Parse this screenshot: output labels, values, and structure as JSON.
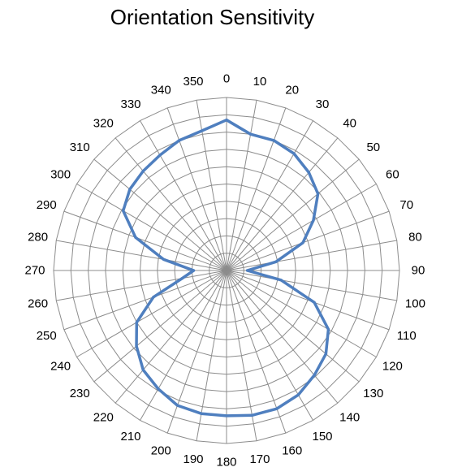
{
  "chart_data": {
    "type": "radar",
    "title": "Orientation Sensitivity",
    "angle_labels": [
      "0",
      "10",
      "20",
      "30",
      "40",
      "50",
      "60",
      "70",
      "80",
      "90",
      "100",
      "110",
      "120",
      "130",
      "140",
      "150",
      "160",
      "170",
      "180",
      "190",
      "200",
      "210",
      "220",
      "230",
      "240",
      "250",
      "260",
      "270",
      "280",
      "290",
      "300",
      "310",
      "320",
      "330",
      "340",
      "350"
    ],
    "radial_range": [
      0,
      10
    ],
    "grid_rings": 10,
    "grid": true,
    "series": [
      {
        "color": "#4f7fbf",
        "values": [
          8.7,
          8.0,
          8.0,
          7.8,
          7.4,
          6.9,
          5.8,
          4.7,
          2.9,
          1.2,
          3.2,
          5.4,
          6.8,
          7.5,
          7.9,
          8.3,
          8.5,
          8.5,
          8.4,
          8.4,
          8.3,
          7.9,
          7.5,
          6.8,
          6.0,
          4.5,
          2.6,
          1.9,
          3.7,
          5.6,
          6.9,
          7.3,
          7.5,
          7.7,
          8.0,
          8.2
        ]
      }
    ]
  }
}
